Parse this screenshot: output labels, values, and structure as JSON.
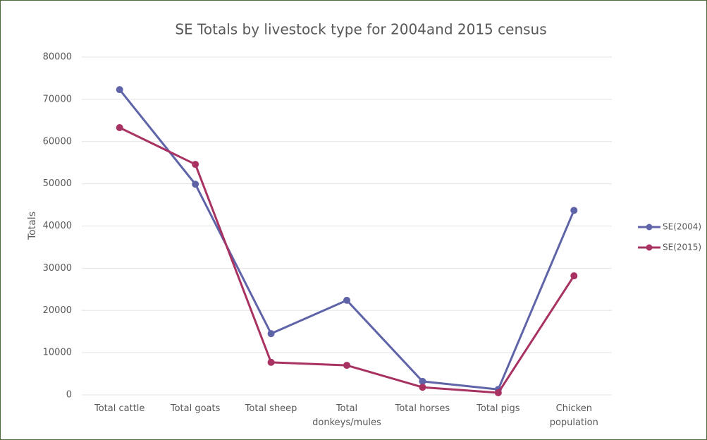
{
  "chart_data": {
    "type": "line",
    "title": "SE Totals by livestock type for 2004and 2015  census",
    "y_label": "Totals",
    "categories": [
      "Total cattle",
      "Total goats",
      "Total sheep",
      "Total donkeys/mules",
      "Total horses",
      "Total pigs",
      "Chicken population"
    ],
    "series": [
      {
        "name": "SE(2004)",
        "color": "#5f63a8",
        "values": [
          72300,
          49900,
          14500,
          22400,
          3200,
          1300,
          43700
        ]
      },
      {
        "name": "SE(2015)",
        "color": "#a83262",
        "values": [
          63300,
          54600,
          7700,
          7000,
          1800,
          500,
          28200
        ]
      }
    ],
    "ylim": [
      0,
      80000
    ],
    "yticks": [
      0,
      10000,
      20000,
      30000,
      40000,
      50000,
      60000,
      70000,
      80000
    ],
    "grid": true,
    "legend": "right"
  }
}
